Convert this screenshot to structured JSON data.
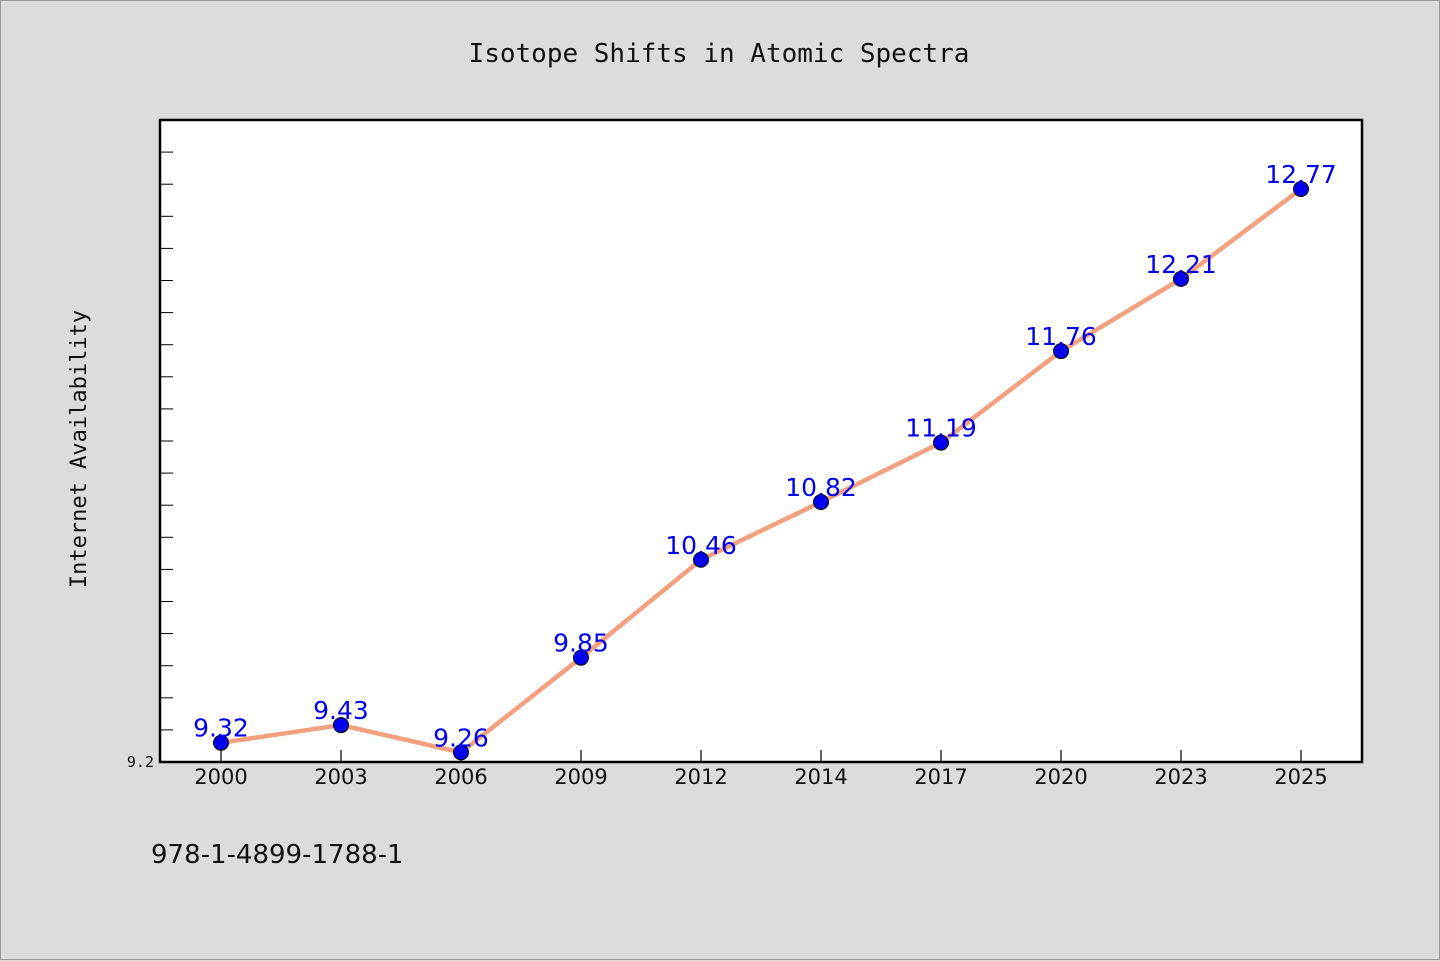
{
  "chart_data": {
    "type": "line",
    "title": "Isotope Shifts in Atomic Spectra",
    "xlabel": "",
    "ylabel": "Internet Availability",
    "categories": [
      "2000",
      "2003",
      "2006",
      "2009",
      "2012",
      "2014",
      "2017",
      "2020",
      "2023",
      "2025"
    ],
    "series": [
      {
        "values": [
          9.32,
          9.43,
          9.26,
          9.85,
          10.46,
          10.82,
          11.19,
          11.76,
          12.21,
          12.77
        ]
      }
    ],
    "data_labels": [
      "9.32",
      "9.43",
      "9.26",
      "9.85",
      "10.46",
      "10.82",
      "11.19",
      "11.76",
      "12.21",
      "12.77"
    ],
    "ylim": [
      9.2,
      13.2
    ],
    "y_tick_labels": [
      {
        "value": 9.2,
        "label": "9.2"
      }
    ],
    "y_minor_tick_step": 0.2,
    "grid": false,
    "line_color": "#f4a07e",
    "marker_color": "#0000ee",
    "label_color": "#0000ee"
  },
  "footnote": "978-1-4899-1788-1"
}
